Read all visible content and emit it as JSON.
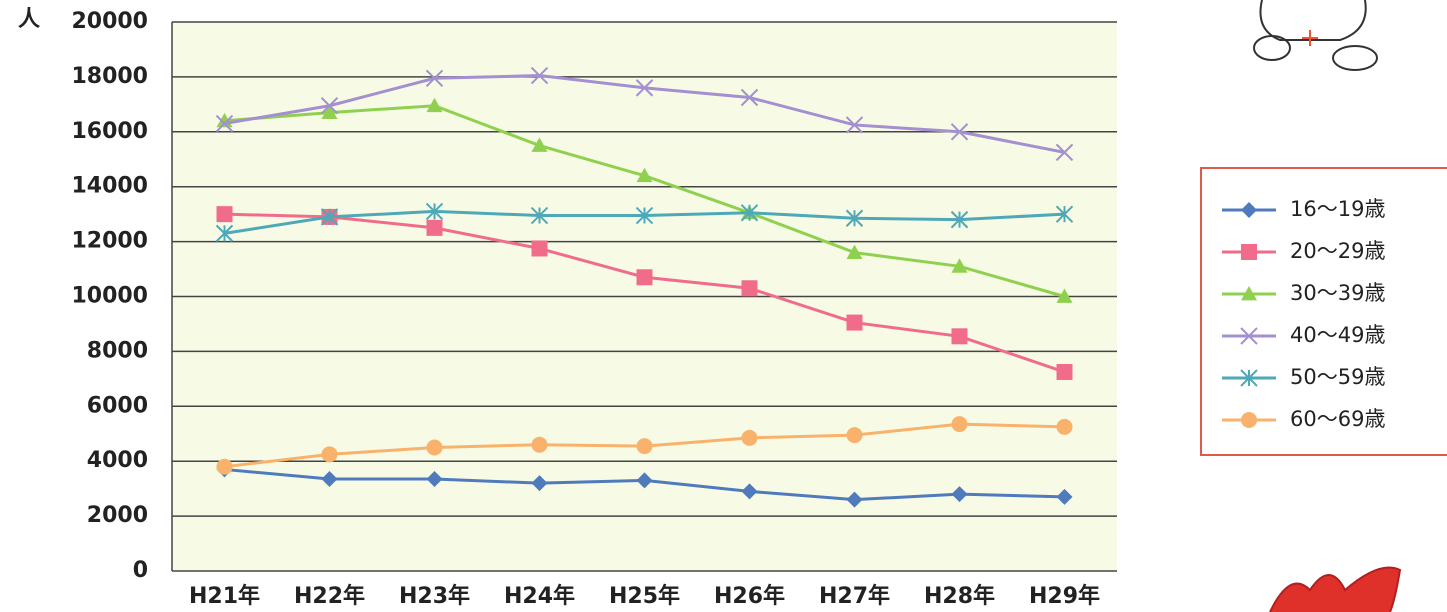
{
  "chart_data": {
    "type": "line",
    "y_unit": "人",
    "categories": [
      "H21年",
      "H22年",
      "H23年",
      "H24年",
      "H25年",
      "H26年",
      "H27年",
      "H28年",
      "H29年"
    ],
    "series": [
      {
        "name": "16～19歳",
        "color": "#4f7bbd",
        "marker": "diamond",
        "values": [
          3700,
          3350,
          3350,
          3200,
          3300,
          2900,
          2600,
          2800,
          2700
        ]
      },
      {
        "name": "20～29歳",
        "color": "#f06c8a",
        "marker": "square",
        "values": [
          13000,
          12900,
          12500,
          11750,
          10700,
          10300,
          9050,
          8550,
          7250
        ]
      },
      {
        "name": "30～39歳",
        "color": "#8fd14f",
        "marker": "triangle",
        "values": [
          16400,
          16700,
          16950,
          15500,
          14400,
          13050,
          11600,
          11100,
          10000
        ]
      },
      {
        "name": "40～49歳",
        "color": "#a48fd0",
        "marker": "x",
        "values": [
          16300,
          16950,
          17950,
          18050,
          17600,
          17250,
          16250,
          16000,
          15250
        ]
      },
      {
        "name": "50～59歳",
        "color": "#4fa8b8",
        "marker": "asterisk",
        "values": [
          12300,
          12900,
          13100,
          12950,
          12950,
          13050,
          12850,
          12800,
          13000
        ]
      },
      {
        "name": "60～69歳",
        "color": "#f9b26b",
        "marker": "circle",
        "values": [
          3800,
          4250,
          4500,
          4600,
          4550,
          4850,
          4950,
          5350,
          5250
        ]
      }
    ],
    "ylim": [
      0,
      20000
    ],
    "yticks": [
      0,
      2000,
      4000,
      6000,
      8000,
      10000,
      12000,
      14000,
      16000,
      18000,
      20000
    ],
    "grid": true
  }
}
